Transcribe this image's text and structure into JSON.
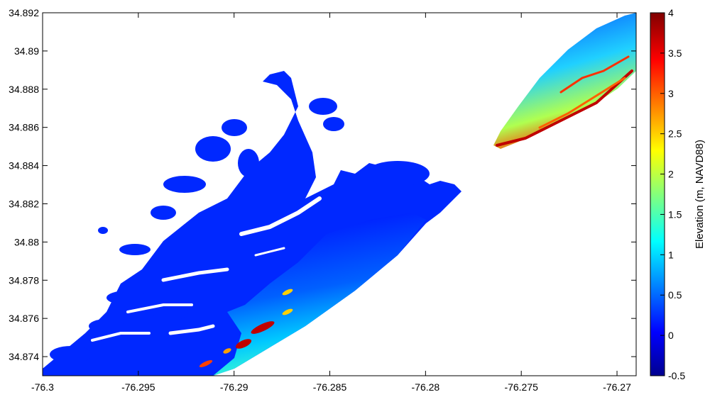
{
  "map": {
    "x_ticks": [
      "-76.3",
      "-76.295",
      "-76.29",
      "-76.285",
      "-76.28",
      "-76.275",
      "-76.27"
    ],
    "y_ticks": [
      "34.892",
      "34.89",
      "34.888",
      "34.886",
      "34.884",
      "34.882",
      "34.88",
      "34.878",
      "34.876",
      "34.874"
    ],
    "x_range": [
      -76.3,
      -76.269
    ],
    "y_range": [
      34.873,
      34.892
    ]
  },
  "colorbar": {
    "title": "Elevation (m, NAVD88)",
    "ticks": [
      "4",
      "3.5",
      "3",
      "2.5",
      "2",
      "1.5",
      "1",
      "0.5",
      "0",
      "-0.5"
    ],
    "range": [
      -0.5,
      4
    ],
    "colormap": "jet",
    "colors": [
      "#00008f",
      "#0000ff",
      "#00ffff",
      "#ffff00",
      "#ff0000",
      "#800000"
    ]
  }
}
